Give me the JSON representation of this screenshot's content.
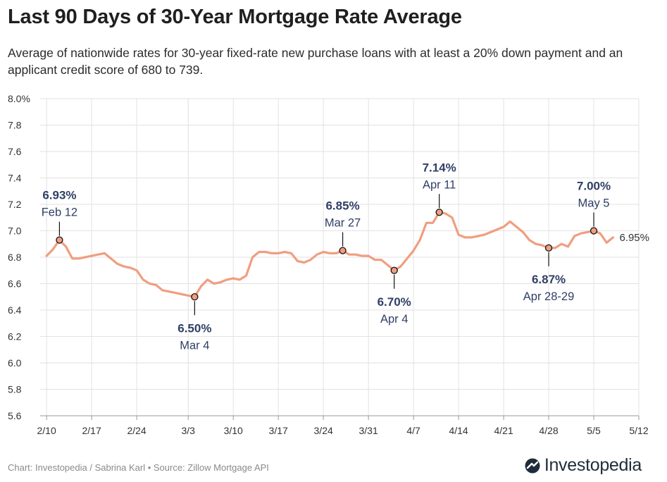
{
  "title": "Last 90 Days of 30-Year Mortgage Rate Average",
  "subtitle": "Average of nationwide rates for 30-year fixed-rate new purchase loans with at least a 20% down payment and an applicant credit score of 680 to 739.",
  "footer": "Chart: Investopedia / Sabrina Karl • Source: Zillow Mortgage API",
  "brand": {
    "name": "Investopedia",
    "icon": "investopedia-logo-icon"
  },
  "colors": {
    "line": "#f09e80",
    "annotation": "#2f3f66",
    "grid": "#e2e2e2"
  },
  "chart_data": {
    "type": "line",
    "title": "Last 90 Days of 30-Year Mortgage Rate Average",
    "xlabel": "",
    "ylabel": "",
    "grid": true,
    "ylim": [
      5.6,
      8.0
    ],
    "y_ticks": [
      {
        "value": 8.0,
        "label": "8.0%"
      },
      {
        "value": 7.8,
        "label": "7.8"
      },
      {
        "value": 7.6,
        "label": "7.6"
      },
      {
        "value": 7.4,
        "label": "7.4"
      },
      {
        "value": 7.2,
        "label": "7.2"
      },
      {
        "value": 7.0,
        "label": "7.0"
      },
      {
        "value": 6.8,
        "label": "6.8"
      },
      {
        "value": 6.6,
        "label": "6.6"
      },
      {
        "value": 6.4,
        "label": "6.4"
      },
      {
        "value": 6.2,
        "label": "6.2"
      },
      {
        "value": 6.0,
        "label": "6.0"
      },
      {
        "value": 5.8,
        "label": "5.8"
      },
      {
        "value": 5.6,
        "label": "5.6"
      }
    ],
    "x_start": "2/9",
    "x_ticks": [
      {
        "date": "2/10",
        "label": "2/10"
      },
      {
        "date": "2/17",
        "label": "2/17"
      },
      {
        "date": "2/24",
        "label": "2/24"
      },
      {
        "date": "3/3",
        "label": "3/3"
      },
      {
        "date": "3/10",
        "label": "3/10"
      },
      {
        "date": "3/17",
        "label": "3/17"
      },
      {
        "date": "3/24",
        "label": "3/24"
      },
      {
        "date": "3/31",
        "label": "3/31"
      },
      {
        "date": "4/7",
        "label": "4/7"
      },
      {
        "date": "4/14",
        "label": "4/14"
      },
      {
        "date": "4/21",
        "label": "4/21"
      },
      {
        "date": "4/28",
        "label": "4/28"
      },
      {
        "date": "5/5",
        "label": "5/5"
      },
      {
        "date": "5/12",
        "label": "5/12"
      }
    ],
    "x_end": "5/12",
    "series": [
      {
        "values": [
          {
            "date": "2/10",
            "y": 6.81
          },
          {
            "date": "2/11",
            "y": 6.86
          },
          {
            "date": "2/12",
            "y": 6.93
          },
          {
            "date": "2/13",
            "y": 6.88
          },
          {
            "date": "2/14",
            "y": 6.79
          },
          {
            "date": "2/15",
            "y": 6.79
          },
          {
            "date": "2/16",
            "y": 6.8
          },
          {
            "date": "2/17",
            "y": 6.81
          },
          {
            "date": "2/18",
            "y": 6.82
          },
          {
            "date": "2/19",
            "y": 6.83
          },
          {
            "date": "2/20",
            "y": 6.79
          },
          {
            "date": "2/21",
            "y": 6.75
          },
          {
            "date": "2/22",
            "y": 6.73
          },
          {
            "date": "2/23",
            "y": 6.72
          },
          {
            "date": "2/24",
            "y": 6.7
          },
          {
            "date": "2/25",
            "y": 6.63
          },
          {
            "date": "2/26",
            "y": 6.6
          },
          {
            "date": "2/27",
            "y": 6.59
          },
          {
            "date": "2/28",
            "y": 6.55
          },
          {
            "date": "2/29",
            "y": 6.54
          },
          {
            "date": "3/1",
            "y": 6.53
          },
          {
            "date": "3/2",
            "y": 6.52
          },
          {
            "date": "3/3",
            "y": 6.51
          },
          {
            "date": "3/4",
            "y": 6.5
          },
          {
            "date": "3/5",
            "y": 6.58
          },
          {
            "date": "3/6",
            "y": 6.63
          },
          {
            "date": "3/7",
            "y": 6.6
          },
          {
            "date": "3/8",
            "y": 6.61
          },
          {
            "date": "3/9",
            "y": 6.63
          },
          {
            "date": "3/10",
            "y": 6.64
          },
          {
            "date": "3/11",
            "y": 6.63
          },
          {
            "date": "3/12",
            "y": 6.66
          },
          {
            "date": "3/13",
            "y": 6.8
          },
          {
            "date": "3/14",
            "y": 6.84
          },
          {
            "date": "3/15",
            "y": 6.84
          },
          {
            "date": "3/16",
            "y": 6.83
          },
          {
            "date": "3/17",
            "y": 6.83
          },
          {
            "date": "3/18",
            "y": 6.84
          },
          {
            "date": "3/19",
            "y": 6.83
          },
          {
            "date": "3/20",
            "y": 6.77
          },
          {
            "date": "3/21",
            "y": 6.76
          },
          {
            "date": "3/22",
            "y": 6.78
          },
          {
            "date": "3/23",
            "y": 6.82
          },
          {
            "date": "3/24",
            "y": 6.84
          },
          {
            "date": "3/25",
            "y": 6.83
          },
          {
            "date": "3/26",
            "y": 6.83
          },
          {
            "date": "3/27",
            "y": 6.85
          },
          {
            "date": "3/28",
            "y": 6.82
          },
          {
            "date": "3/29",
            "y": 6.82
          },
          {
            "date": "3/30",
            "y": 6.81
          },
          {
            "date": "3/31",
            "y": 6.81
          },
          {
            "date": "4/1",
            "y": 6.78
          },
          {
            "date": "4/2",
            "y": 6.78
          },
          {
            "date": "4/3",
            "y": 6.74
          },
          {
            "date": "4/4",
            "y": 6.7
          },
          {
            "date": "4/5",
            "y": 6.73
          },
          {
            "date": "4/6",
            "y": 6.79
          },
          {
            "date": "4/7",
            "y": 6.85
          },
          {
            "date": "4/8",
            "y": 6.93
          },
          {
            "date": "4/9",
            "y": 7.06
          },
          {
            "date": "4/10",
            "y": 7.06
          },
          {
            "date": "4/11",
            "y": 7.14
          },
          {
            "date": "4/12",
            "y": 7.13
          },
          {
            "date": "4/13",
            "y": 7.1
          },
          {
            "date": "4/14",
            "y": 6.97
          },
          {
            "date": "4/15",
            "y": 6.95
          },
          {
            "date": "4/16",
            "y": 6.95
          },
          {
            "date": "4/17",
            "y": 6.96
          },
          {
            "date": "4/18",
            "y": 6.97
          },
          {
            "date": "4/19",
            "y": 6.99
          },
          {
            "date": "4/20",
            "y": 7.01
          },
          {
            "date": "4/21",
            "y": 7.03
          },
          {
            "date": "4/22",
            "y": 7.07
          },
          {
            "date": "4/23",
            "y": 7.03
          },
          {
            "date": "4/24",
            "y": 6.99
          },
          {
            "date": "4/25",
            "y": 6.93
          },
          {
            "date": "4/26",
            "y": 6.9
          },
          {
            "date": "4/27",
            "y": 6.89
          },
          {
            "date": "4/28",
            "y": 6.87
          },
          {
            "date": "4/29",
            "y": 6.87
          },
          {
            "date": "4/30",
            "y": 6.9
          },
          {
            "date": "5/1",
            "y": 6.88
          },
          {
            "date": "5/2",
            "y": 6.96
          },
          {
            "date": "5/3",
            "y": 6.98
          },
          {
            "date": "5/4",
            "y": 6.99
          },
          {
            "date": "5/5",
            "y": 7.0
          },
          {
            "date": "5/6",
            "y": 6.98
          },
          {
            "date": "5/7",
            "y": 6.91
          },
          {
            "date": "5/8",
            "y": 6.95
          }
        ]
      }
    ],
    "annotations": [
      {
        "date": "2/12",
        "y": 6.93,
        "value_label": "6.93%",
        "date_label": "Feb 12",
        "position": "above"
      },
      {
        "date": "3/4",
        "y": 6.5,
        "value_label": "6.50%",
        "date_label": "Mar 4",
        "position": "below"
      },
      {
        "date": "3/27",
        "y": 6.85,
        "value_label": "6.85%",
        "date_label": "Mar 27",
        "position": "above"
      },
      {
        "date": "4/4",
        "y": 6.7,
        "value_label": "6.70%",
        "date_label": "Apr 4",
        "position": "below"
      },
      {
        "date": "4/11",
        "y": 7.14,
        "value_label": "7.14%",
        "date_label": "Apr 11",
        "position": "above"
      },
      {
        "date": "4/28",
        "y": 6.87,
        "value_label": "6.87%",
        "date_label": "Apr 28-29",
        "position": "below"
      },
      {
        "date": "5/5",
        "y": 7.0,
        "value_label": "7.00%",
        "date_label": "May 5",
        "position": "above"
      }
    ],
    "end_label": {
      "date": "5/8",
      "y": 6.95,
      "label": "6.95%"
    }
  }
}
